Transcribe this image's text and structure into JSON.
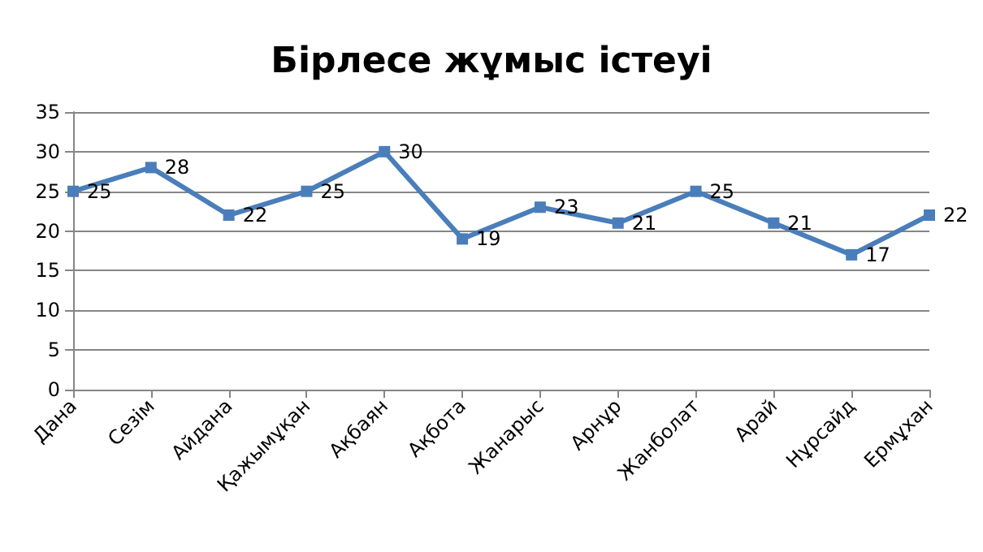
{
  "chart_data": {
    "type": "line",
    "title": "Бірлесе жұмыс істеуі",
    "categories": [
      "Дана",
      "Сезім",
      "Айдана",
      "Қажымұқан",
      "Ақбаян",
      "Ақбота",
      "Жанарыс",
      "Арнұр",
      "Жанболат",
      "Арай",
      "Нұрсайд",
      "Ермұхан"
    ],
    "values": [
      25,
      28,
      22,
      25,
      30,
      19,
      23,
      21,
      25,
      21,
      17,
      22
    ],
    "color": "#4a7ebb",
    "ylim": [
      0,
      35
    ],
    "yticks": [
      0,
      5,
      10,
      15,
      20,
      25,
      30,
      35
    ],
    "grid": "y",
    "marker": "square",
    "line_style": "solid",
    "data_labels": true
  }
}
